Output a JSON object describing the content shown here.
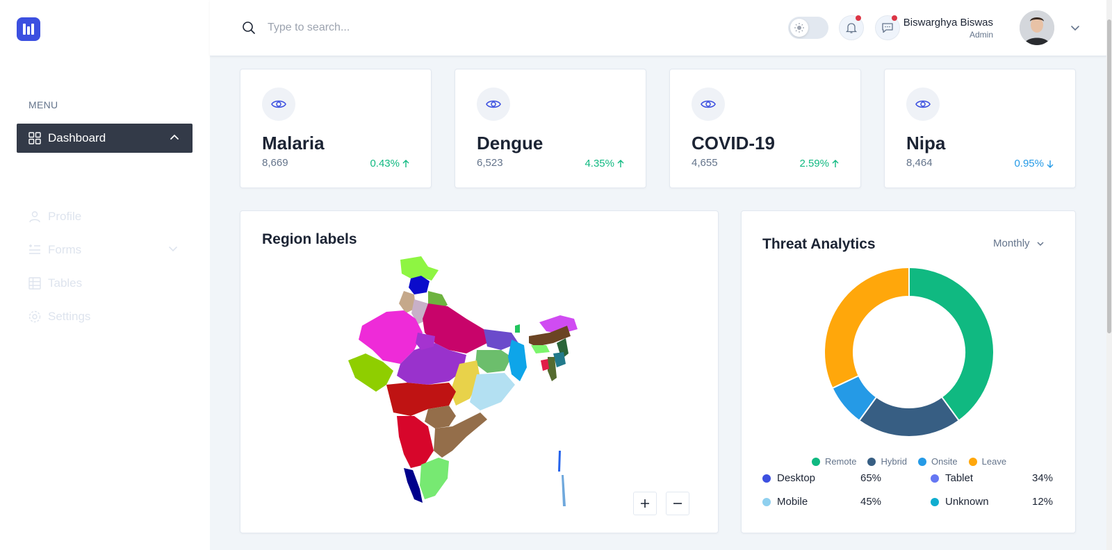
{
  "sidebar": {
    "menu_title": "MENU",
    "items": [
      {
        "label": "Dashboard",
        "icon": "grid-icon"
      },
      {
        "label": "Profile",
        "icon": "user-icon"
      },
      {
        "label": "Forms",
        "icon": "form-icon"
      },
      {
        "label": "Tables",
        "icon": "table-icon"
      },
      {
        "label": "Settings",
        "icon": "gear-icon"
      }
    ]
  },
  "header": {
    "search_placeholder": "Type to search...",
    "user_name": "Biswarghya Biswas",
    "user_role": "Admin"
  },
  "stats": [
    {
      "title": "Malaria",
      "value": "8,669",
      "change": "0.43%",
      "direction": "up"
    },
    {
      "title": "Dengue",
      "value": "6,523",
      "change": "4.35%",
      "direction": "up"
    },
    {
      "title": "COVID-19",
      "value": "4,655",
      "change": "2.59%",
      "direction": "up"
    },
    {
      "title": "Nipa",
      "value": "8,464",
      "change": "0.95%",
      "direction": "down"
    }
  ],
  "map": {
    "title": "Region labels"
  },
  "threat": {
    "title": "Threat Analytics",
    "period": "Monthly",
    "legend": [
      {
        "name": "Remote",
        "color": "#10b981",
        "value": 40
      },
      {
        "name": "Hybrid",
        "color": "#375e83",
        "value": 20
      },
      {
        "name": "Onsite",
        "color": "#259ae6",
        "value": 8
      },
      {
        "name": "Leave",
        "color": "#ffa70b",
        "value": 32
      }
    ],
    "devices": [
      {
        "name": "Desktop",
        "pct": "65%",
        "color": "#3c50e0"
      },
      {
        "name": "Tablet",
        "pct": "34%",
        "color": "#6577f3"
      },
      {
        "name": "Mobile",
        "pct": "45%",
        "color": "#8fd0ef"
      },
      {
        "name": "Unknown",
        "pct": "12%",
        "color": "#0fadcf"
      }
    ]
  },
  "colors": {
    "primary": "#3c50e0",
    "sidebar_active": "#333a48",
    "success": "#10b981",
    "info": "#259ae6"
  }
}
